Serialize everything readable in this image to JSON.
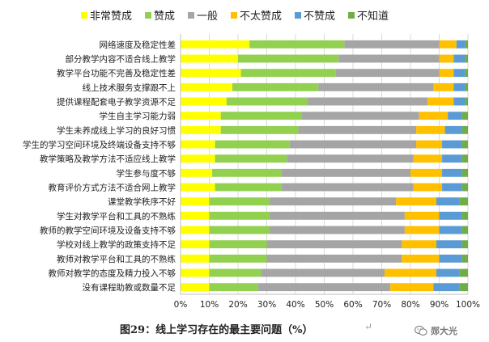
{
  "chart_data": {
    "type": "bar",
    "orientation": "horizontal",
    "stacked": true,
    "percent": true,
    "categories": [
      "网络速度及稳定性差",
      "部分教学内容不适合线上教学",
      "教学平台功能不完善及稳定性差",
      "线上技术服务支撑跟不上",
      "提供课程配套电子教学资源不足",
      "学生自主学习能力弱",
      "学生未养成线上学习的良好习惯",
      "学生的学习空间环境及终端设备支持不够",
      "教学策略及教学方法不适应线上教学",
      "学生参与度不够",
      "教育评价方式方法不适合网上教学",
      "课堂教学秩序不好",
      "学生对教学平台和工具的不熟练",
      "教师的教学空间环境及设备支持不够",
      "学校对线上教学的政策支持不足",
      "教师对教学平台和工具的不熟练",
      "教师对教学的态度及精力投入不够",
      "没有课程助教或数量不足"
    ],
    "series": [
      {
        "name": "非常赞成",
        "color": "#FFFF00",
        "values": [
          24,
          20,
          21,
          18,
          16,
          14,
          14,
          12,
          12,
          11,
          12,
          10,
          10,
          10,
          10,
          10,
          10,
          10
        ]
      },
      {
        "name": "赞成",
        "color": "#92D050",
        "values": [
          33,
          35,
          33,
          30,
          28,
          28,
          27,
          26,
          25,
          24,
          23,
          21,
          21,
          21,
          20,
          20,
          18,
          17
        ]
      },
      {
        "name": "一般",
        "color": "#A5A5A5",
        "values": [
          33,
          35,
          36,
          40,
          42,
          41,
          41,
          44,
          44,
          45,
          46,
          44,
          47,
          47,
          47,
          47,
          43,
          46
        ]
      },
      {
        "name": "不太赞成",
        "color": "#FFC000",
        "values": [
          6,
          5,
          5,
          7,
          9,
          10,
          10,
          9,
          10,
          11,
          10,
          14,
          12,
          12,
          12,
          13,
          18,
          15
        ]
      },
      {
        "name": "不赞成",
        "color": "#5B9BD5",
        "values": [
          3,
          4,
          4,
          4,
          4,
          5,
          6,
          7,
          7,
          7,
          7,
          8,
          8,
          8,
          9,
          8,
          8,
          9
        ]
      },
      {
        "name": "不知道",
        "color": "#70AD47",
        "values": [
          1,
          1,
          1,
          1,
          1,
          2,
          2,
          2,
          2,
          2,
          2,
          3,
          2,
          2,
          2,
          2,
          3,
          3
        ]
      }
    ],
    "xaxis": {
      "min": 0,
      "max": 100,
      "ticks": [
        "0%",
        "10%",
        "20%",
        "30%",
        "40%",
        "50%",
        "60%",
        "70%",
        "80%",
        "90%",
        "100%"
      ]
    },
    "grid": true,
    "legend_position": "top"
  },
  "caption": "图29：线上学习存在的最主要问题（%）",
  "caption_mark": "↵",
  "watermark": {
    "text": "郧大光",
    "icon": "wechat-icon"
  }
}
